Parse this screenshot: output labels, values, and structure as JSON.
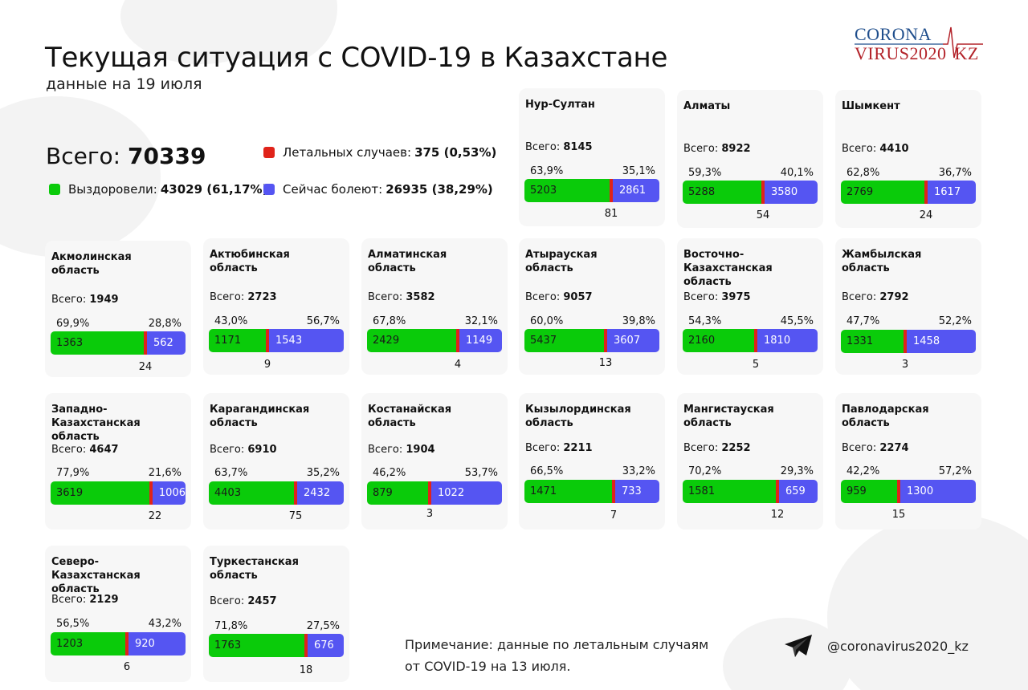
{
  "header": {
    "title": "Текущая ситуация с COVID-19 в Казахстане",
    "subtitle": "данные на 19 июля"
  },
  "logo": {
    "line1": "CORONA",
    "line2": "VIRUS2020",
    "line2_suffix": "KZ"
  },
  "colors": {
    "recovered": "#0acb0a",
    "deaths": "#e0231a",
    "active": "#5555f2",
    "card_bg": "#f7f7f7"
  },
  "summary": {
    "total_label": "Всего:",
    "total_value": "70339",
    "deaths_label": "Летальных случаев:",
    "deaths_value": "375 (0,53%)",
    "recovered_label": "Выздоровели:",
    "recovered_value": "43029 (61,17%)",
    "active_label": "Сейчас болеют:",
    "active_value": "26935 (38,29%)"
  },
  "card_total_label": "Всего:",
  "regions": [
    {
      "name": "Нур-Султан",
      "total": "8145",
      "rec_pct": "63,9%",
      "act_pct": "35,1%",
      "recovered": "5203",
      "active": "2861",
      "deaths": "81"
    },
    {
      "name": "Алматы",
      "total": "8922",
      "rec_pct": "59,3%",
      "act_pct": "40,1%",
      "recovered": "5288",
      "active": "3580",
      "deaths": "54"
    },
    {
      "name": "Шымкент",
      "total": "4410",
      "rec_pct": "62,8%",
      "act_pct": "36,7%",
      "recovered": "2769",
      "active": "1617",
      "deaths": "24"
    },
    {
      "name": "Акмолинская область",
      "total": "1949",
      "rec_pct": "69,9%",
      "act_pct": "28,8%",
      "recovered": "1363",
      "active": "562",
      "deaths": "24"
    },
    {
      "name": "Актюбинская область",
      "total": "2723",
      "rec_pct": "43,0%",
      "act_pct": "56,7%",
      "recovered": "1171",
      "active": "1543",
      "deaths": "9"
    },
    {
      "name": "Алматинская область",
      "total": "3582",
      "rec_pct": "67,8%",
      "act_pct": "32,1%",
      "recovered": "2429",
      "active": "1149",
      "deaths": "4"
    },
    {
      "name": "Атырауская область",
      "total": "9057",
      "rec_pct": "60,0%",
      "act_pct": "39,8%",
      "recovered": "5437",
      "active": "3607",
      "deaths": "13"
    },
    {
      "name": "Восточно-Казахстанская область",
      "total": "3975",
      "rec_pct": "54,3%",
      "act_pct": "45,5%",
      "recovered": "2160",
      "active": "1810",
      "deaths": "5"
    },
    {
      "name": "Жамбылская область",
      "total": "2792",
      "rec_pct": "47,7%",
      "act_pct": "52,2%",
      "recovered": "1331",
      "active": "1458",
      "deaths": "3"
    },
    {
      "name": "Западно-Казахстанская область",
      "total": "4647",
      "rec_pct": "77,9%",
      "act_pct": "21,6%",
      "recovered": "3619",
      "active": "1006",
      "deaths": "22"
    },
    {
      "name": "Карагандинская область",
      "total": "6910",
      "rec_pct": "63,7%",
      "act_pct": "35,2%",
      "recovered": "4403",
      "active": "2432",
      "deaths": "75"
    },
    {
      "name": "Костанайская область",
      "total": "1904",
      "rec_pct": "46,2%",
      "act_pct": "53,7%",
      "recovered": "879",
      "active": "1022",
      "deaths": "3"
    },
    {
      "name": "Кызылординская область",
      "total": "2211",
      "rec_pct": "66,5%",
      "act_pct": "33,2%",
      "recovered": "1471",
      "active": "733",
      "deaths": "7"
    },
    {
      "name": "Мангистауская область",
      "total": "2252",
      "rec_pct": "70,2%",
      "act_pct": "29,3%",
      "recovered": "1581",
      "active": "659",
      "deaths": "12"
    },
    {
      "name": "Павлодарская область",
      "total": "2274",
      "rec_pct": "42,2%",
      "act_pct": "57,2%",
      "recovered": "959",
      "active": "1300",
      "deaths": "15"
    },
    {
      "name": "Северо-Казахстанская область",
      "total": "2129",
      "rec_pct": "56,5%",
      "act_pct": "43,2%",
      "recovered": "1203",
      "active": "920",
      "deaths": "6"
    },
    {
      "name": "Туркестанская область",
      "total": "2457",
      "rec_pct": "71,8%",
      "act_pct": "27,5%",
      "recovered": "1763",
      "active": "676",
      "deaths": "18"
    }
  ],
  "footer": {
    "note": "Примечание: данные по летальным случаям от COVID-19 на 13 июля.",
    "note_line1": "Примечание: данные по летальным случаям",
    "note_line2": "от COVID-19 на 13 июля.",
    "telegram_icon": "telegram-plane-icon",
    "handle": "@coronavirus2020_kz"
  },
  "chart_data": {
    "type": "bar",
    "title": "Текущая ситуация с COVID-19 в Казахстане",
    "subtitle": "данные на 19 июля",
    "stacked": true,
    "orientation": "horizontal",
    "categories": [
      "Нур-Султан",
      "Алматы",
      "Шымкент",
      "Акмолинская область",
      "Актюбинская область",
      "Алматинская область",
      "Атырауская область",
      "Восточно-Казахстанская область",
      "Жамбылская область",
      "Западно-Казахстанская область",
      "Карагандинская область",
      "Костанайская область",
      "Кызылординская область",
      "Мангистауская область",
      "Павлодарская область",
      "Северо-Казахстанская область",
      "Туркестанская область"
    ],
    "series": [
      {
        "name": "Выздоровели",
        "color": "#0acb0a",
        "values": [
          5203,
          5288,
          2769,
          1363,
          1171,
          2429,
          5437,
          2160,
          1331,
          3619,
          4403,
          879,
          1471,
          1581,
          959,
          1203,
          1763
        ]
      },
      {
        "name": "Летальных случаев",
        "color": "#e0231a",
        "values": [
          81,
          54,
          24,
          24,
          9,
          4,
          13,
          5,
          3,
          22,
          75,
          3,
          7,
          12,
          15,
          6,
          18
        ]
      },
      {
        "name": "Сейчас болеют",
        "color": "#5555f2",
        "values": [
          2861,
          3580,
          1617,
          562,
          1543,
          1149,
          3607,
          1810,
          1458,
          1006,
          2432,
          1022,
          733,
          659,
          1300,
          920,
          676
        ]
      }
    ],
    "totals": [
      8145,
      8922,
      4410,
      1949,
      2723,
      3582,
      9057,
      3975,
      2792,
      4647,
      6910,
      1904,
      2211,
      2252,
      2274,
      2129,
      2457
    ],
    "recovered_pct": [
      63.9,
      59.3,
      62.8,
      69.9,
      43.0,
      67.8,
      60.0,
      54.3,
      47.7,
      77.9,
      63.7,
      46.2,
      66.5,
      70.2,
      42.2,
      56.5,
      71.8
    ],
    "active_pct": [
      35.1,
      40.1,
      36.7,
      28.8,
      56.7,
      32.1,
      39.8,
      45.5,
      52.2,
      21.6,
      35.2,
      53.7,
      33.2,
      29.3,
      57.2,
      43.2,
      27.5
    ],
    "overall": {
      "total": 70339,
      "recovered": 43029,
      "recovered_pct": 61.17,
      "deaths": 375,
      "deaths_pct": 0.53,
      "active": 26935,
      "active_pct": 38.29
    },
    "legend": [
      "Выздоровели",
      "Летальных случаев",
      "Сейчас болеют"
    ],
    "annotations": [
      "Примечание: данные по летальным случаям от COVID-19 на 13 июля."
    ]
  }
}
